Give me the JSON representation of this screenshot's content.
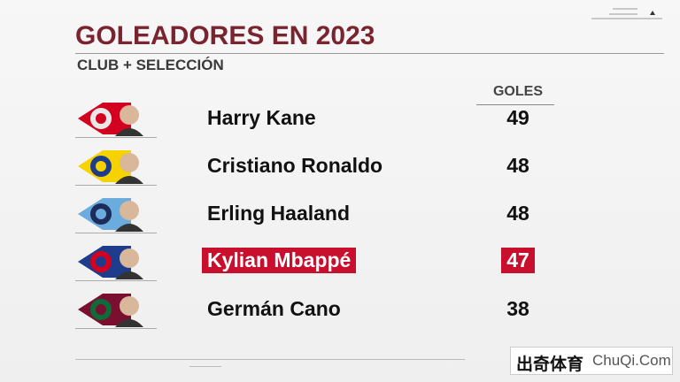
{
  "header": {
    "title": "GOLEADORES EN 2023",
    "subtitle": "CLUB + SELECCIÓN"
  },
  "table": {
    "column": "GOLES",
    "rows": [
      {
        "player": "Harry Kane",
        "goals": 49
      },
      {
        "player": "Cristiano Ronaldo",
        "goals": 48
      },
      {
        "player": "Erling Haaland",
        "goals": 48
      },
      {
        "player": "Kylian Mbappé",
        "goals": 47
      },
      {
        "player": "Germán Cano",
        "goals": 38
      }
    ]
  },
  "watermark": {
    "brand": "出奇体育",
    "site": "ChuQi.Com"
  }
}
